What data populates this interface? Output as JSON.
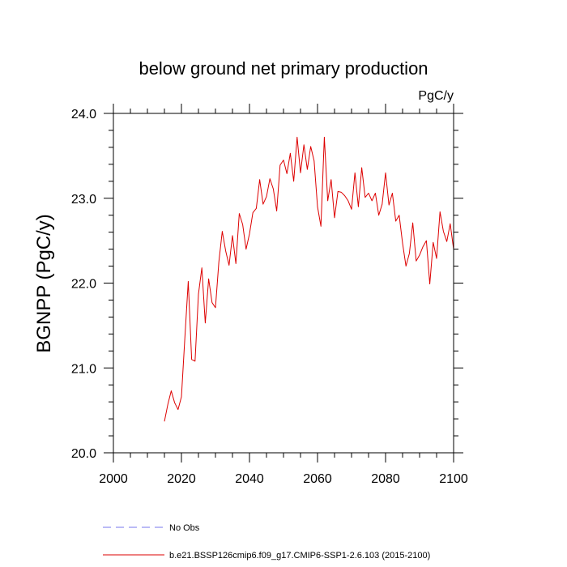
{
  "chart_data": {
    "type": "line",
    "title": "below ground net primary production",
    "units": "PgC/y",
    "xlabel": "",
    "ylabel": "BGNPP  (PgC/y)",
    "xlim": [
      2000,
      2100
    ],
    "ylim": [
      20.0,
      24.0
    ],
    "xticks": [
      2000,
      2020,
      2040,
      2060,
      2080,
      2100
    ],
    "yticks": [
      20.0,
      21.0,
      22.0,
      23.0,
      24.0
    ],
    "xtick_labels": [
      "2000",
      "2020",
      "2040",
      "2060",
      "2080",
      "2100"
    ],
    "ytick_labels": [
      "20.0",
      "21.0",
      "22.0",
      "23.0",
      "24.0"
    ],
    "grid": false,
    "legend": [
      {
        "label": "No Obs",
        "color": "#7777ee",
        "style": "dashed"
      },
      {
        "label": "b.e21.BSSP126cmip6.f09_g17.CMIP6-SSP1-2.6.103 (2015-2100)",
        "color": "#dd0000",
        "style": "solid"
      }
    ],
    "series": [
      {
        "name": "b.e21.BSSP126cmip6.f09_g17.CMIP6-SSP1-2.6.103 (2015-2100)",
        "color": "#dd0000",
        "x": [
          2015,
          2016,
          2017,
          2018,
          2019,
          2020,
          2021,
          2022,
          2023,
          2024,
          2025,
          2026,
          2027,
          2028,
          2029,
          2030,
          2031,
          2032,
          2033,
          2034,
          2035,
          2036,
          2037,
          2038,
          2039,
          2040,
          2041,
          2042,
          2043,
          2044,
          2045,
          2046,
          2047,
          2048,
          2049,
          2050,
          2051,
          2052,
          2053,
          2054,
          2055,
          2056,
          2057,
          2058,
          2059,
          2060,
          2061,
          2062,
          2063,
          2064,
          2065,
          2066,
          2067,
          2068,
          2069,
          2070,
          2071,
          2072,
          2073,
          2074,
          2075,
          2076,
          2077,
          2078,
          2079,
          2080,
          2081,
          2082,
          2083,
          2084,
          2085,
          2086,
          2087,
          2088,
          2089,
          2090,
          2091,
          2092,
          2093,
          2094,
          2095,
          2096,
          2097,
          2098,
          2099,
          2100
        ],
        "values": [
          20.37,
          20.57,
          20.73,
          20.59,
          20.51,
          20.66,
          21.35,
          22.02,
          21.1,
          21.08,
          21.87,
          22.18,
          21.53,
          22.05,
          21.77,
          21.71,
          22.25,
          22.61,
          22.38,
          22.21,
          22.56,
          22.23,
          22.82,
          22.69,
          22.4,
          22.58,
          22.83,
          22.88,
          23.22,
          22.93,
          23.02,
          23.23,
          23.11,
          22.85,
          23.39,
          23.45,
          23.29,
          23.53,
          23.2,
          23.72,
          23.3,
          23.63,
          23.34,
          23.61,
          23.44,
          22.9,
          22.67,
          23.72,
          22.97,
          23.22,
          22.77,
          23.08,
          23.07,
          23.03,
          22.97,
          22.87,
          23.3,
          22.9,
          23.36,
          23.01,
          23.06,
          22.97,
          23.06,
          22.8,
          22.93,
          23.3,
          22.92,
          23.06,
          22.73,
          22.8,
          22.47,
          22.2,
          22.35,
          22.71,
          22.26,
          22.33,
          22.43,
          22.5,
          21.99,
          22.48,
          22.29,
          22.84,
          22.61,
          22.49,
          22.7,
          22.4
        ]
      }
    ]
  }
}
